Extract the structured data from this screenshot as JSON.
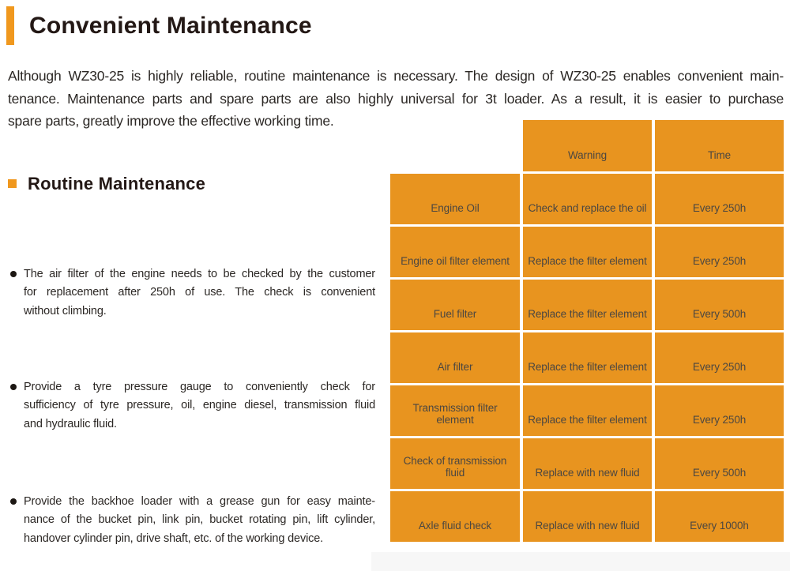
{
  "colors": {
    "accent_orange": "#E8941F",
    "bar_orange": "#F0981E",
    "title_text": "#231815",
    "body_text": "#2B2724",
    "table_text": "#4C4741",
    "page_bg": "#FFFFFF"
  },
  "page": {
    "title": "Convenient Maintenance",
    "intro_lines": [
      "Although WZ30-25 is highly reliable, routine maintenance is necessary. The design of WZ30-25 enables convenient main-",
      "tenance. Maintenance parts and spare parts are also highly universal for 3t loader. As a result, it is easier to purchase",
      "spare parts, greatly improve the effective working time."
    ],
    "section": {
      "heading": "Routine Maintenance",
      "bullets": [
        {
          "lines": [
            "The air filter of the engine needs to be checked by the customer",
            "for replacement after 250h of use. The check is convenient",
            "without climbing."
          ]
        },
        {
          "lines": [
            "Provide a tyre pressure gauge to conveniently check for",
            "sufficiency of tyre pressure, oil, engine diesel, transmission fluid",
            "and hydraulic fluid."
          ]
        },
        {
          "lines": [
            "Provide the backhoe loader with a grease gun for easy mainte-",
            "nance of the bucket pin, link pin, bucket rotating pin, lift cylinder,",
            "handover cylinder pin, drive shaft, etc. of the working device."
          ]
        }
      ]
    }
  },
  "maintenance_table": {
    "column_headers": {
      "item": "",
      "warning": "Warning",
      "time": "Time"
    },
    "rows": [
      {
        "item": "Engine Oil",
        "warning": "Check and replace the oil",
        "time": "Every 250h"
      },
      {
        "item": "Engine oil filter element",
        "warning": "Replace the filter element",
        "time": "Every 250h"
      },
      {
        "item": "Fuel filter",
        "warning": "Replace the filter element",
        "time": "Every 500h"
      },
      {
        "item": "Air filter",
        "warning": "Replace the filter element",
        "time": "Every 250h"
      },
      {
        "item": "Transmission filter element",
        "warning": "Replace the filter element",
        "time": "Every 250h"
      },
      {
        "item": "Check of transmission fluid",
        "warning": "Replace with new fluid",
        "time": "Every 500h"
      },
      {
        "item": "Axle fluid check",
        "warning": "Replace with new fluid",
        "time": "Every 1000h"
      }
    ]
  }
}
